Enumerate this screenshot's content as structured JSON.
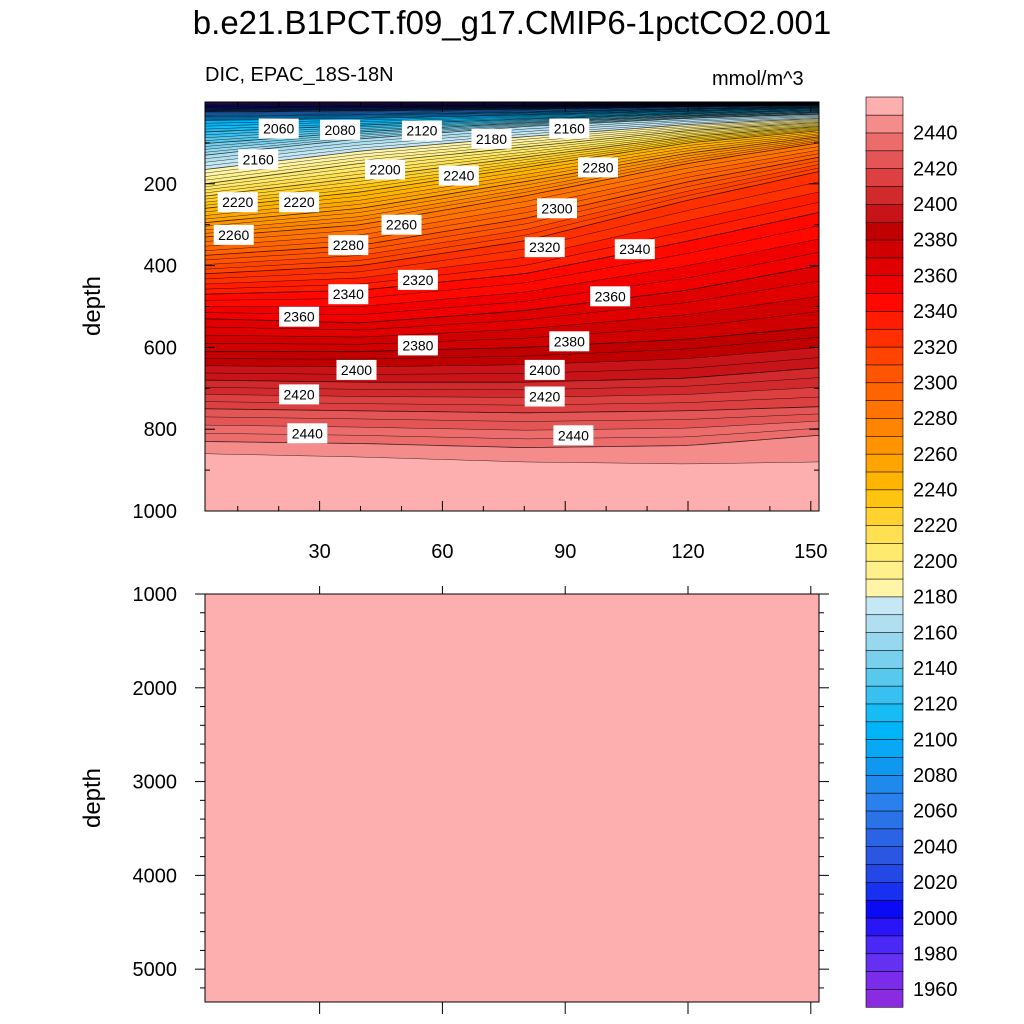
{
  "title": "b.e21.B1PCT.f09_g17.CMIP6-1pctCO2.001",
  "subtitle_left": "DIC, EPAC_18S-18N",
  "subtitle_right": "mmol/m^3",
  "colors": {
    "bottom_fill": "#fdafaf"
  },
  "chart_data": [
    {
      "type": "contour",
      "panel": "upper",
      "ylabel": "depth",
      "xlim": [
        2,
        152
      ],
      "ylim": [
        0,
        1000
      ],
      "y_inverted": true,
      "x_ticks": [
        30,
        60,
        90,
        120,
        150
      ],
      "y_ticks": [
        200,
        400,
        600,
        800,
        1000
      ],
      "contour_interval": 5,
      "contour_depths": [
        {
          "level": 2060,
          "x": [
            2,
            40,
            80,
            120,
            152
          ],
          "depth": [
            25,
            22,
            18,
            12,
            8
          ]
        },
        {
          "level": 2100,
          "x": [
            2,
            40,
            80,
            120,
            152
          ],
          "depth": [
            45,
            40,
            32,
            22,
            15
          ]
        },
        {
          "level": 2160,
          "x": [
            2,
            40,
            80,
            120,
            152
          ],
          "depth": [
            130,
            90,
            60,
            40,
            30
          ]
        },
        {
          "level": 2200,
          "x": [
            2,
            40,
            80,
            120,
            152
          ],
          "depth": [
            200,
            150,
            110,
            70,
            50
          ]
        },
        {
          "level": 2240,
          "x": [
            2,
            40,
            80,
            120,
            152
          ],
          "depth": [
            260,
            220,
            160,
            100,
            70
          ]
        },
        {
          "level": 2280,
          "x": [
            2,
            40,
            80,
            120,
            152
          ],
          "depth": [
            330,
            300,
            230,
            150,
            100
          ]
        },
        {
          "level": 2320,
          "x": [
            2,
            40,
            80,
            120,
            152
          ],
          "depth": [
            420,
            400,
            340,
            240,
            170
          ]
        },
        {
          "level": 2340,
          "x": [
            2,
            40,
            80,
            120,
            152
          ],
          "depth": [
            470,
            460,
            420,
            340,
            270
          ]
        },
        {
          "level": 2360,
          "x": [
            2,
            40,
            80,
            120,
            152
          ],
          "depth": [
            530,
            540,
            510,
            460,
            400
          ]
        },
        {
          "level": 2380,
          "x": [
            2,
            40,
            80,
            120,
            152
          ],
          "depth": [
            610,
            610,
            600,
            580,
            550
          ]
        },
        {
          "level": 2400,
          "x": [
            2,
            40,
            80,
            120,
            152
          ],
          "depth": [
            680,
            685,
            685,
            675,
            650
          ]
        },
        {
          "level": 2420,
          "x": [
            2,
            40,
            80,
            120,
            152
          ],
          "depth": [
            750,
            755,
            760,
            755,
            745
          ]
        },
        {
          "level": 2440,
          "x": [
            2,
            40,
            80,
            120,
            152
          ],
          "depth": [
            830,
            835,
            845,
            840,
            815
          ]
        },
        {
          "level": 2445,
          "x": [
            2,
            40,
            80,
            120,
            152
          ],
          "depth": [
            860,
            868,
            880,
            885,
            880
          ]
        }
      ],
      "contour_labels": [
        {
          "text": "2060",
          "x": 20,
          "depth": 65
        },
        {
          "text": "2080",
          "x": 35,
          "depth": 68
        },
        {
          "text": "2120",
          "x": 55,
          "depth": 70
        },
        {
          "text": "2180",
          "x": 72,
          "depth": 90
        },
        {
          "text": "2160",
          "x": 91,
          "depth": 65
        },
        {
          "text": "2160",
          "x": 15,
          "depth": 140
        },
        {
          "text": "2200",
          "x": 46,
          "depth": 165
        },
        {
          "text": "2240",
          "x": 64,
          "depth": 180
        },
        {
          "text": "2280",
          "x": 98,
          "depth": 160
        },
        {
          "text": "2220",
          "x": 10,
          "depth": 245
        },
        {
          "text": "2220",
          "x": 25,
          "depth": 245
        },
        {
          "text": "2300",
          "x": 88,
          "depth": 260
        },
        {
          "text": "2260",
          "x": 50,
          "depth": 300
        },
        {
          "text": "2260",
          "x": 9,
          "depth": 325
        },
        {
          "text": "2280",
          "x": 37,
          "depth": 350
        },
        {
          "text": "2320",
          "x": 85,
          "depth": 355
        },
        {
          "text": "2340",
          "x": 107,
          "depth": 360
        },
        {
          "text": "2320",
          "x": 54,
          "depth": 435
        },
        {
          "text": "2340",
          "x": 37,
          "depth": 470
        },
        {
          "text": "2360",
          "x": 101,
          "depth": 475
        },
        {
          "text": "2360",
          "x": 25,
          "depth": 525
        },
        {
          "text": "2380",
          "x": 54,
          "depth": 595
        },
        {
          "text": "2380",
          "x": 91,
          "depth": 585
        },
        {
          "text": "2400",
          "x": 39,
          "depth": 655
        },
        {
          "text": "2400",
          "x": 85,
          "depth": 655
        },
        {
          "text": "2420",
          "x": 25,
          "depth": 715
        },
        {
          "text": "2420",
          "x": 85,
          "depth": 720
        },
        {
          "text": "2440",
          "x": 27,
          "depth": 810
        },
        {
          "text": "2440",
          "x": 92,
          "depth": 815
        }
      ]
    },
    {
      "type": "contour",
      "panel": "lower",
      "ylabel": "depth",
      "xlim": [
        2,
        152
      ],
      "ylim": [
        1000,
        5350
      ],
      "y_inverted": true,
      "y_ticks": [
        1000,
        2000,
        3000,
        4000,
        5000
      ],
      "fill_level": 2450
    }
  ],
  "colorbar": {
    "levels": [
      1950,
      1960,
      1970,
      1980,
      1990,
      2000,
      2010,
      2020,
      2030,
      2040,
      2050,
      2060,
      2070,
      2080,
      2090,
      2100,
      2110,
      2120,
      2130,
      2140,
      2150,
      2160,
      2170,
      2180,
      2190,
      2200,
      2210,
      2220,
      2230,
      2240,
      2250,
      2260,
      2270,
      2280,
      2290,
      2300,
      2310,
      2320,
      2330,
      2340,
      2350,
      2360,
      2370,
      2380,
      2390,
      2400,
      2410,
      2420,
      2430,
      2440,
      2450
    ],
    "labels": [
      1960,
      1980,
      2000,
      2020,
      2040,
      2060,
      2080,
      2100,
      2120,
      2140,
      2160,
      2180,
      2200,
      2220,
      2240,
      2260,
      2280,
      2300,
      2320,
      2340,
      2360,
      2380,
      2400,
      2420,
      2440
    ],
    "colors": [
      "#8a2be2",
      "#7a2cea",
      "#6430f2",
      "#4a28f5",
      "#2a14f8",
      "#0a0af5",
      "#1830f0",
      "#2448e6",
      "#2a56e2",
      "#2a64e4",
      "#2a72e8",
      "#2a80ec",
      "#1e8aee",
      "#1098f0",
      "#08a8f4",
      "#00b4f8",
      "#18bcf4",
      "#38c0f0",
      "#58c8ec",
      "#78d0ec",
      "#98d8ee",
      "#b0e0f0",
      "#c6e8f4",
      "#fff4a8",
      "#fff08c",
      "#ffea70",
      "#ffe050",
      "#ffd230",
      "#ffc410",
      "#ffb400",
      "#ffa400",
      "#ff9400",
      "#ff8400",
      "#ff7400",
      "#ff6400",
      "#ff5400",
      "#ff4400",
      "#ff3000",
      "#ff1c00",
      "#ff0800",
      "#f00000",
      "#e00000",
      "#d00000",
      "#c00000",
      "#c81418",
      "#d02a2c",
      "#dc4040",
      "#e45656",
      "#ec6c6c",
      "#f48c8c",
      "#fdafaf"
    ]
  }
}
